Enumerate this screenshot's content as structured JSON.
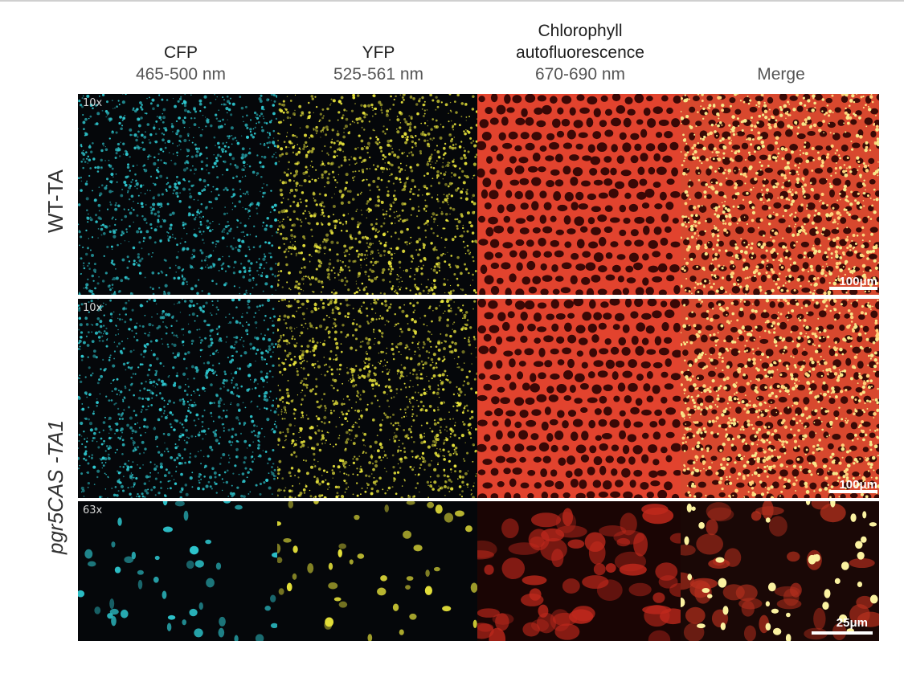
{
  "columns": [
    {
      "name": "CFP",
      "range": "465-500 nm"
    },
    {
      "name": "YFP",
      "range": "525-561 nm"
    },
    {
      "name": "Chlorophyll autofluorescence",
      "range": "670-690 nm"
    },
    {
      "name": "Merge",
      "range": ""
    }
  ],
  "rows": [
    {
      "label": "WT-TA",
      "magnification": "10x",
      "scale_bar": "100μm"
    },
    {
      "label": "pgr5CAS -TA1",
      "magnification": "10x",
      "scale_bar": "100μm"
    },
    {
      "label": "",
      "magnification": "63x",
      "scale_bar": "25μm"
    }
  ],
  "colors": {
    "cfp": "#2ec8d0",
    "yfp": "#e6e23a",
    "chlorophyll": "#e83a2a",
    "merge": "#f2c05a",
    "background": "#05070a"
  }
}
